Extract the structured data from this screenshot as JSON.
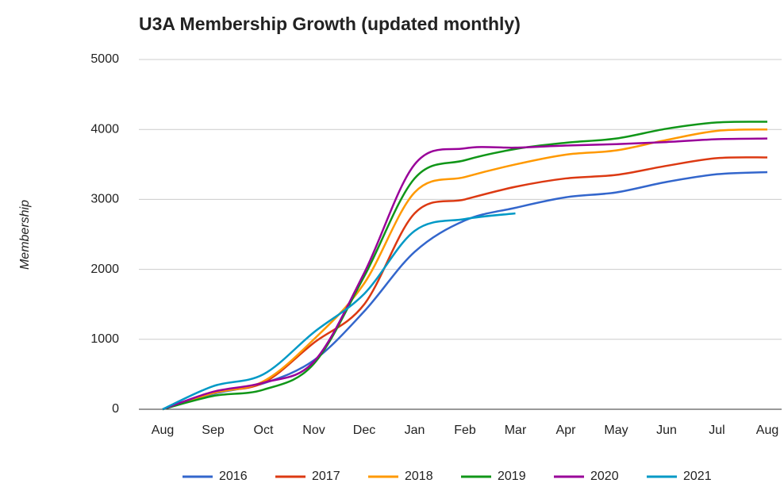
{
  "chart_data": {
    "type": "line",
    "title": "U3A Membership Growth (updated monthly)",
    "y_label": "Membership",
    "categories": [
      "Aug",
      "Sep",
      "Oct",
      "Nov",
      "Dec",
      "Jan",
      "Feb",
      "Mar",
      "Apr",
      "May",
      "Jun",
      "Jul",
      "Aug"
    ],
    "series": [
      {
        "name": "2016",
        "color": "#3366cc",
        "values": [
          0,
          220,
          370,
          700,
          1400,
          2250,
          2700,
          2880,
          3030,
          3100,
          3250,
          3360,
          3390
        ]
      },
      {
        "name": "2017",
        "color": "#dc3912",
        "values": [
          0,
          240,
          380,
          950,
          1500,
          2800,
          3000,
          3180,
          3300,
          3350,
          3480,
          3590,
          3600
        ]
      },
      {
        "name": "2018",
        "color": "#ff9900",
        "values": [
          0,
          230,
          400,
          1000,
          1800,
          3100,
          3320,
          3500,
          3640,
          3700,
          3850,
          3980,
          4000
        ]
      },
      {
        "name": "2019",
        "color": "#109618",
        "values": [
          0,
          190,
          280,
          650,
          1900,
          3300,
          3560,
          3720,
          3810,
          3870,
          4010,
          4100,
          4110
        ]
      },
      {
        "name": "2020",
        "color": "#990099",
        "values": [
          0,
          250,
          380,
          680,
          1950,
          3500,
          3730,
          3740,
          3770,
          3790,
          3820,
          3860,
          3870
        ]
      },
      {
        "name": "2021",
        "color": "#0099c6",
        "values": [
          0,
          330,
          500,
          1100,
          1650,
          2550,
          2720,
          2800,
          null,
          null,
          null,
          null,
          null
        ]
      }
    ],
    "ylim": [
      0,
      5000
    ],
    "yticks": [
      0,
      1000,
      2000,
      3000,
      4000,
      5000
    ],
    "grid": true,
    "legend": "bottom"
  }
}
